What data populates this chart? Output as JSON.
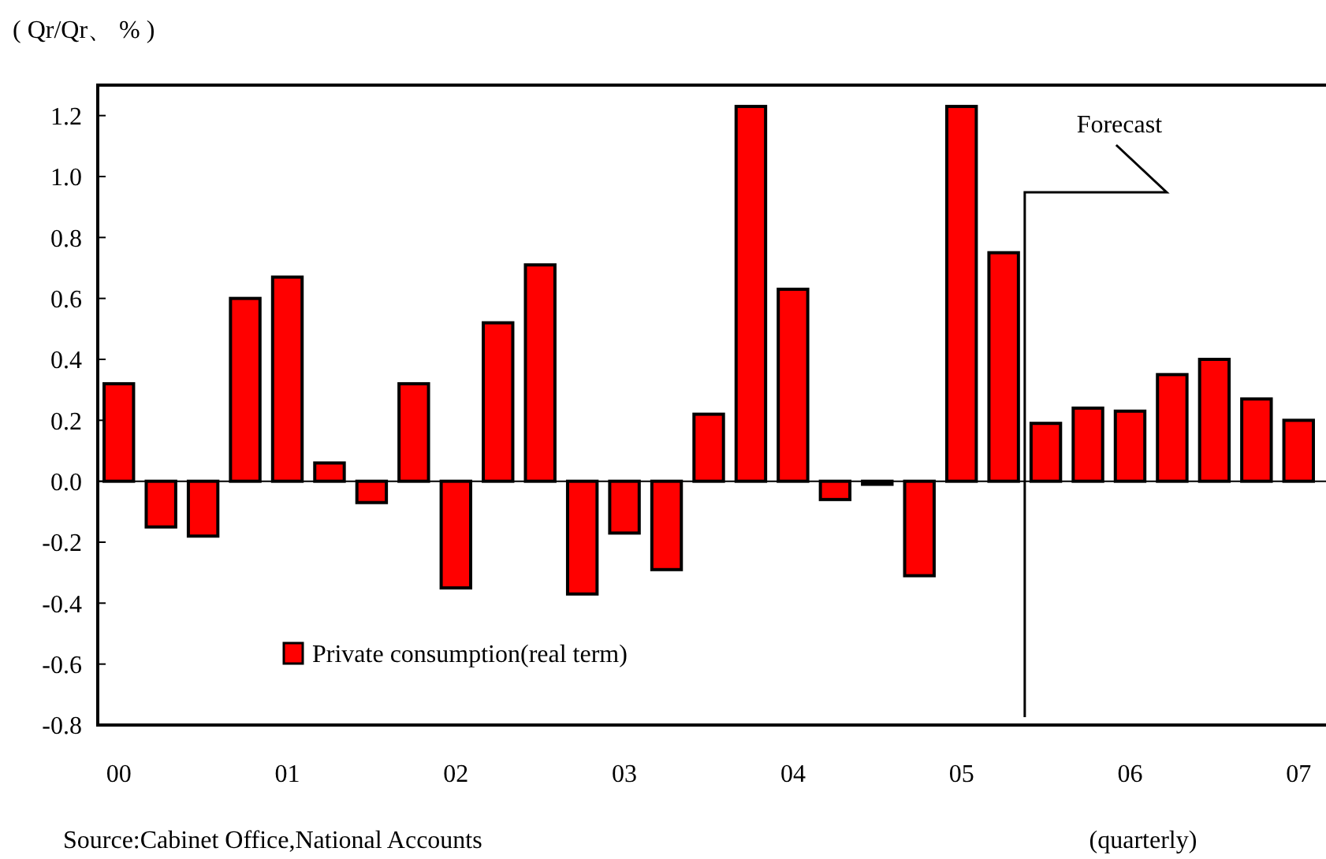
{
  "chart_data": {
    "type": "bar",
    "ylabel": "( Qr/Qr、 % )",
    "xlabel": "(quarterly)",
    "categories": [
      "00",
      null,
      null,
      null,
      "01",
      null,
      null,
      null,
      "02",
      null,
      null,
      null,
      "03",
      null,
      null,
      null,
      "04",
      null,
      null,
      null,
      "05",
      null,
      null,
      null,
      "06",
      null,
      null,
      null,
      "07"
    ],
    "series": [
      {
        "name": "Private consumption(real term)",
        "color": "#ff0000",
        "values": [
          0.32,
          -0.15,
          -0.18,
          0.6,
          0.67,
          0.06,
          -0.07,
          0.32,
          -0.35,
          0.52,
          0.71,
          -0.37,
          -0.17,
          -0.29,
          0.22,
          1.23,
          0.63,
          -0.06,
          -0.01,
          -0.31,
          1.23,
          0.75,
          0.19,
          0.24,
          0.23,
          0.35,
          0.4,
          0.27,
          0.2
        ]
      }
    ],
    "ylim": [
      -0.8,
      1.3
    ],
    "yticks": [
      {
        "value": -0.8,
        "label": "-0.8"
      },
      {
        "value": -0.6,
        "label": "-0.6"
      },
      {
        "value": -0.4,
        "label": "-0.4"
      },
      {
        "value": -0.2,
        "label": "-0.2"
      },
      {
        "value": 0,
        "label": "0.0"
      },
      {
        "value": 0.2,
        "label": "0.2"
      },
      {
        "value": 0.4,
        "label": "0.4"
      },
      {
        "value": 0.6,
        "label": "0.6"
      },
      {
        "value": 0.8,
        "label": "0.8"
      },
      {
        "value": 1,
        "label": "1.0"
      },
      {
        "value": 1.2,
        "label": "1.2"
      }
    ],
    "annotations": [
      "Forecast",
      "Source:Cabinet Office,National Accounts"
    ],
    "legend": "bottom left"
  }
}
